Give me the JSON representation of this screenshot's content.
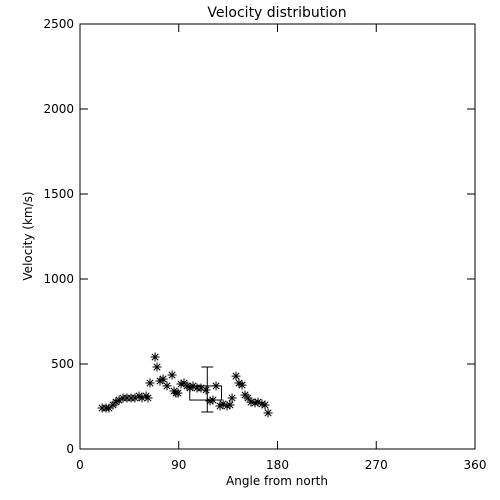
{
  "chart_data": {
    "type": "scatter",
    "title": "Velocity distribution",
    "x_label": "Angle from north",
    "y_label": "Velocity (km/s)",
    "x": [
      20.1,
      23.7,
      26.4,
      30.1,
      32.8,
      35.6,
      39.2,
      42.8,
      46.5,
      50.1,
      53.8,
      56.5,
      60.2,
      62,
      63.8,
      68.4,
      70.2,
      72.9,
      75.7,
      79.3,
      83.9,
      85.7,
      87.5,
      89.3,
      92.1,
      94.8,
      97.5,
      100.3,
      103,
      106.7,
      110.3,
      114.9,
      118.5,
      121.2,
      124,
      127.6,
      130.4,
      134,
      136.7,
      138.6,
      142.2,
      144.9,
      147.7,
      150.4,
      153.1,
      155.9,
      159.5,
      162.3,
      165.9,
      168.6,
      171.4
    ],
    "values": [
      241,
      241,
      241,
      259,
      276,
      288,
      300,
      300,
      300,
      300,
      312,
      300,
      312,
      300,
      388,
      541,
      482,
      400,
      412,
      371,
      435,
      341,
      329,
      329,
      382,
      388,
      371,
      359,
      371,
      359,
      359,
      347,
      282,
      288,
      371,
      253,
      265,
      253,
      259,
      300,
      429,
      388,
      376,
      318,
      300,
      276,
      271,
      276,
      265,
      259,
      212
    ],
    "color": "#000000",
    "summary": {
      "x": 116,
      "x_range": [
        100,
        129
      ],
      "y_range": [
        288,
        371
      ],
      "y_low": 218,
      "y_high": 482
    },
    "xlim": [
      0,
      360
    ],
    "xticks": [
      0,
      90,
      180,
      270,
      360
    ],
    "ylim": [
      0,
      2500
    ],
    "yticks": [
      0,
      500,
      1000,
      1500,
      2000,
      2500
    ]
  }
}
